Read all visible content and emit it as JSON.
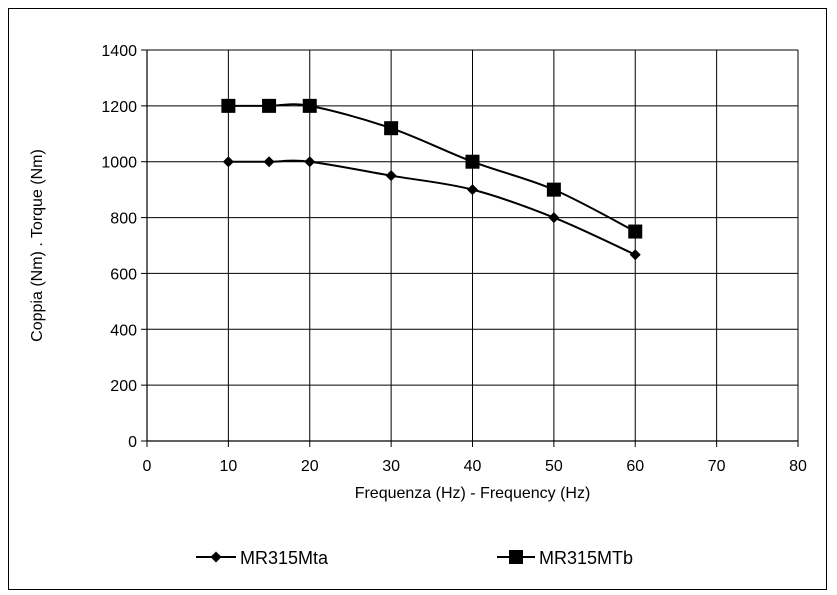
{
  "chart_data": {
    "type": "line",
    "title": "",
    "xlabel": "Frequenza  (Hz) - Frequency (Hz)",
    "ylabel": "Coppia (Nm) . Torque (Nm)",
    "xlim": [
      0,
      80
    ],
    "ylim": [
      0,
      1400
    ],
    "x_ticks": [
      0,
      10,
      20,
      30,
      40,
      50,
      60,
      70,
      80
    ],
    "y_ticks": [
      0,
      200,
      400,
      600,
      800,
      1000,
      1200,
      1400
    ],
    "x_tick_labels": [
      "0",
      "10",
      "20",
      "30",
      "40",
      "50",
      "60",
      "70",
      "80"
    ],
    "y_tick_labels": [
      "0",
      "200",
      "400",
      "600",
      "800",
      "1000",
      "1200",
      "1400"
    ],
    "grid": true,
    "legend_position": "bottom",
    "series": [
      {
        "name": "MR315Mta",
        "marker": "diamond",
        "color": "#000000",
        "x": [
          10,
          15,
          20,
          30,
          40,
          50,
          60
        ],
        "y": [
          1000,
          1000,
          1000,
          950,
          900,
          800,
          667
        ]
      },
      {
        "name": "MR315MTb",
        "marker": "square",
        "color": "#000000",
        "x": [
          10,
          15,
          20,
          30,
          40,
          50,
          60
        ],
        "y": [
          1200,
          1200,
          1200,
          1120,
          1000,
          900,
          750
        ]
      }
    ]
  }
}
